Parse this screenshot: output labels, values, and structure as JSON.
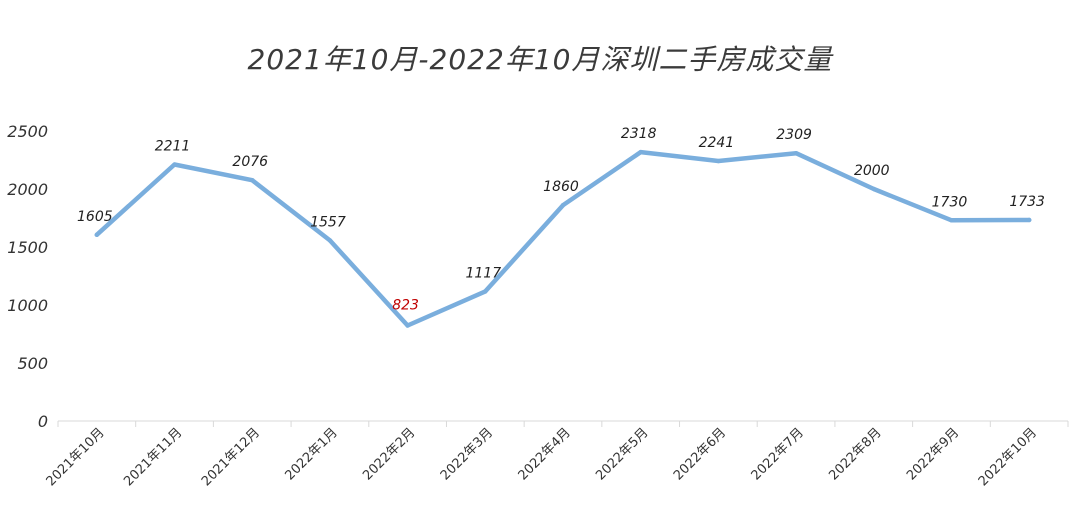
{
  "chart_data": {
    "type": "line",
    "title": "2021年10月-2022年10月深圳二手房成交量",
    "categories": [
      "2021年10月",
      "2021年11月",
      "2021年12月",
      "2022年1月",
      "2022年2月",
      "2022年3月",
      "2022年4月",
      "2022年5月",
      "2022年6月",
      "2022年7月",
      "2022年8月",
      "2022年9月",
      "2022年10月"
    ],
    "series": [
      {
        "values": [
          1605,
          2211,
          2076,
          1557,
          823,
          1117,
          1860,
          2318,
          2241,
          2309,
          2000,
          1730,
          1733
        ],
        "labels": [
          "1605",
          "2211",
          "2076",
          "1557",
          "823",
          "1117",
          "1860",
          "2318",
          "2241",
          "2309",
          "2000",
          "1730",
          "1733"
        ],
        "color": "#7aaedd"
      }
    ],
    "highlight_color": "#c00000",
    "highlight_index": 4,
    "yticks": [
      "0",
      "500",
      "1000",
      "1500",
      "2000",
      "2500"
    ],
    "ylim": [
      0,
      2500
    ],
    "grid": false,
    "legend": "none"
  }
}
